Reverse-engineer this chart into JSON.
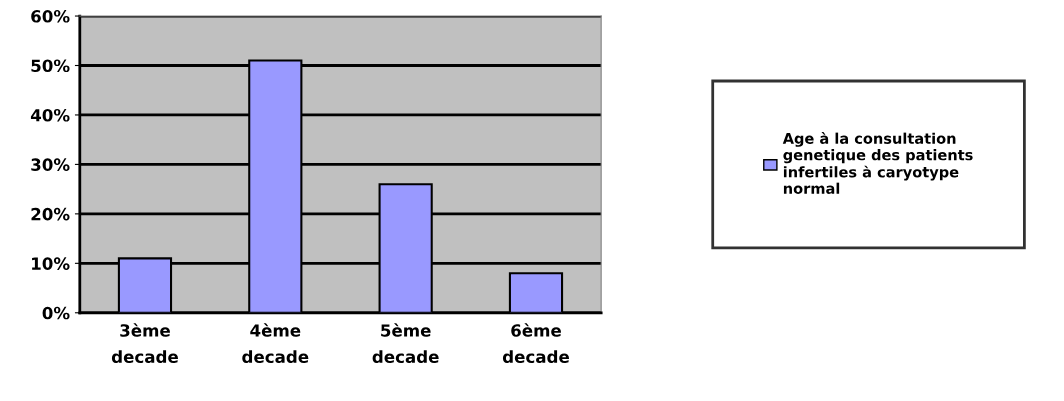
{
  "chart_data": {
    "type": "bar",
    "categories": [
      "3ème decade",
      "4ème decade",
      "5ème decade",
      "6ème decade"
    ],
    "series": [
      {
        "name": "Age à la consultation genetique des patients infertiles à caryotype normal",
        "color": "#9999ff",
        "values": [
          11,
          51,
          26,
          8
        ]
      }
    ],
    "ylim": [
      0,
      60
    ],
    "yticks": [
      {
        "value": 0,
        "label": "0%"
      },
      {
        "value": 10,
        "label": "10%"
      },
      {
        "value": 20,
        "label": "20%"
      },
      {
        "value": 30,
        "label": "30%"
      },
      {
        "value": 40,
        "label": "40%"
      },
      {
        "value": 50,
        "label": "50%"
      },
      {
        "value": 60,
        "label": "60%"
      }
    ],
    "grid": "y",
    "legend": "right"
  }
}
